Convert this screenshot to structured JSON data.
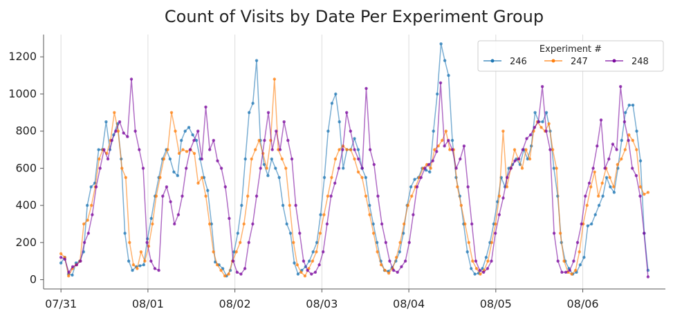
{
  "chart_data": {
    "type": "line",
    "title": "Count of Visits by Date Per Experiment Group",
    "xlabel": "",
    "ylabel": "",
    "ylim": [
      -50,
      1320
    ],
    "xlim": [
      -0.2,
      6.95
    ],
    "x_tick_labels": [
      "07/31",
      "08/01",
      "08/02",
      "08/03",
      "08/04",
      "08/05",
      "08/06"
    ],
    "y_ticks": [
      0,
      200,
      400,
      600,
      800,
      1000,
      1200
    ],
    "grid": "vertical",
    "legend": {
      "title": "Experiment #",
      "placement": "top-right"
    },
    "colors": {
      "246": "#1f77b4",
      "247": "#ff7f0e",
      "248": "#7b0a9e"
    },
    "series": [
      {
        "name": "246",
        "values": [
          90,
          120,
          30,
          25,
          90,
          100,
          150,
          400,
          500,
          520,
          700,
          700,
          850,
          700,
          780,
          840,
          650,
          250,
          100,
          50,
          70,
          75,
          80,
          220,
          330,
          450,
          550,
          650,
          700,
          650,
          580,
          560,
          750,
          800,
          820,
          780,
          750,
          650,
          550,
          480,
          300,
          95,
          80,
          60,
          20,
          50,
          150,
          250,
          400,
          650,
          900,
          950,
          1180,
          750,
          620,
          560,
          650,
          600,
          550,
          400,
          300,
          250,
          90,
          30,
          50,
          70,
          100,
          150,
          200,
          350,
          550,
          800,
          950,
          1000,
          850,
          600,
          700,
          700,
          760,
          700,
          600,
          550,
          400,
          300,
          200,
          100,
          50,
          45,
          65,
          100,
          150,
          250,
          400,
          500,
          540,
          550,
          600,
          590,
          580,
          800,
          1000,
          1270,
          1180,
          1100,
          750,
          550,
          450,
          300,
          150,
          60,
          30,
          35,
          60,
          120,
          200,
          300,
          420,
          550,
          500,
          600,
          620,
          650,
          620,
          700,
          650,
          720,
          900,
          850,
          850,
          900,
          800,
          600,
          450,
          200,
          100,
          60,
          30,
          40,
          80,
          120,
          290,
          300,
          350,
          400,
          450,
          550,
          500,
          470,
          600,
          750,
          900,
          940,
          940,
          800,
          640,
          250,
          50
        ]
      },
      {
        "name": "247",
        "values": [
          140,
          120,
          20,
          60,
          80,
          100,
          300,
          320,
          400,
          500,
          650,
          700,
          680,
          750,
          900,
          800,
          600,
          550,
          200,
          80,
          60,
          150,
          100,
          180,
          300,
          450,
          550,
          650,
          700,
          900,
          800,
          680,
          700,
          690,
          700,
          680,
          520,
          550,
          450,
          300,
          150,
          80,
          50,
          20,
          30,
          100,
          150,
          200,
          300,
          450,
          650,
          700,
          750,
          680,
          600,
          750,
          1080,
          700,
          650,
          600,
          400,
          200,
          80,
          40,
          20,
          60,
          100,
          150,
          250,
          350,
          450,
          550,
          650,
          700,
          720,
          700,
          700,
          650,
          580,
          550,
          450,
          350,
          250,
          150,
          80,
          50,
          35,
          60,
          120,
          200,
          300,
          400,
          450,
          500,
          550,
          600,
          620,
          600,
          700,
          720,
          750,
          800,
          700,
          700,
          500,
          400,
          300,
          200,
          100,
          60,
          30,
          50,
          100,
          200,
          300,
          450,
          800,
          500,
          600,
          700,
          650,
          600,
          700,
          650,
          800,
          850,
          820,
          800,
          840,
          700,
          600,
          250,
          100,
          40,
          30,
          50,
          150,
          300,
          400,
          500,
          580,
          450,
          520,
          600,
          550,
          500,
          620,
          650,
          700,
          780,
          750,
          700,
          500,
          460,
          470
        ]
      },
      {
        "name": "248",
        "values": [
          120,
          110,
          40,
          70,
          80,
          100,
          200,
          250,
          350,
          500,
          600,
          700,
          650,
          750,
          800,
          850,
          790,
          770,
          1080,
          800,
          700,
          600,
          200,
          100,
          60,
          50,
          450,
          500,
          420,
          300,
          350,
          450,
          600,
          700,
          750,
          800,
          650,
          930,
          700,
          750,
          640,
          600,
          500,
          330,
          100,
          40,
          30,
          60,
          200,
          300,
          450,
          600,
          750,
          900,
          700,
          800,
          700,
          850,
          750,
          650,
          400,
          250,
          100,
          50,
          30,
          40,
          80,
          150,
          300,
          450,
          520,
          600,
          700,
          900,
          800,
          700,
          650,
          600,
          1030,
          700,
          620,
          450,
          300,
          200,
          100,
          50,
          40,
          70,
          100,
          200,
          350,
          500,
          550,
          600,
          620,
          640,
          690,
          1060,
          720,
          750,
          700,
          600,
          650,
          720,
          500,
          300,
          100,
          50,
          40,
          60,
          100,
          250,
          350,
          440,
          550,
          600,
          640,
          650,
          700,
          760,
          780,
          820,
          850,
          1040,
          800,
          700,
          250,
          100,
          40,
          40,
          50,
          100,
          200,
          300,
          450,
          520,
          600,
          720,
          860,
          600,
          650,
          730,
          700,
          1040,
          850,
          750,
          600,
          560,
          450,
          250,
          15
        ]
      }
    ]
  }
}
